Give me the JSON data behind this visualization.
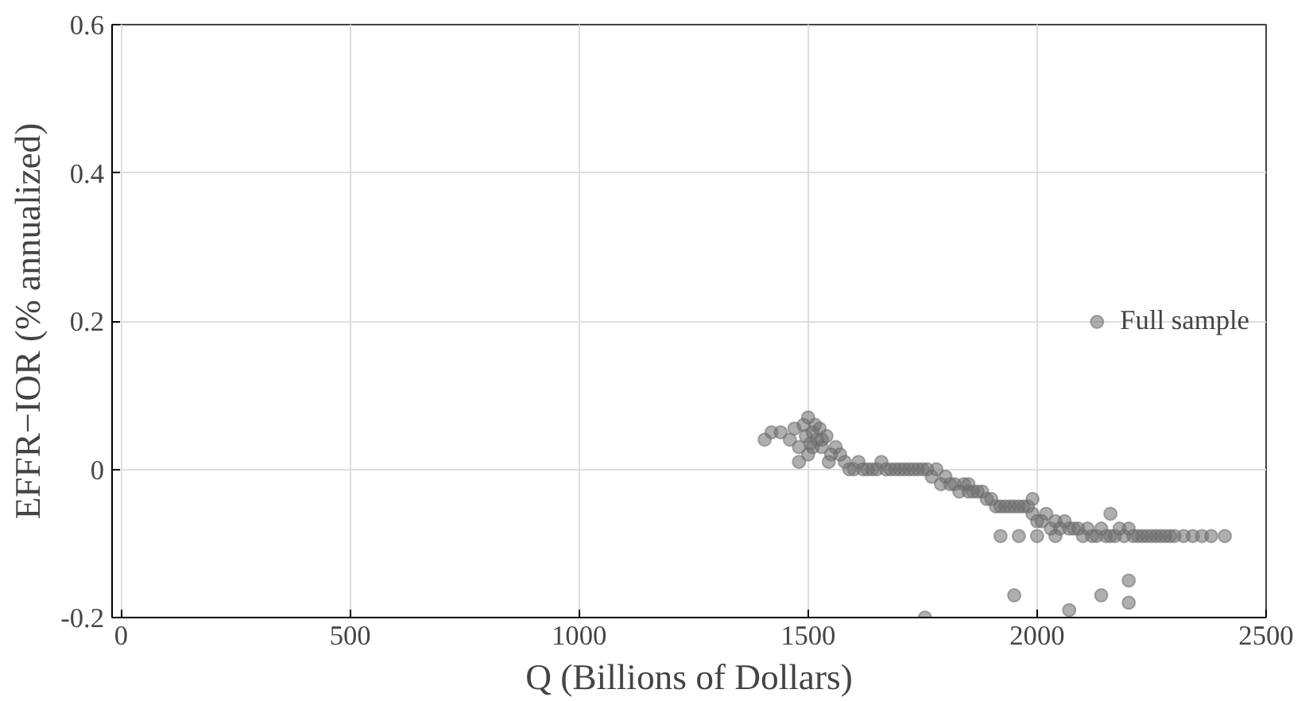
{
  "chart_data": {
    "type": "scatter",
    "xlabel": "Q (Billions of Dollars)",
    "ylabel": "EFFR−IOR (% annualized)",
    "xlim": [
      -20,
      2500
    ],
    "ylim": [
      -0.2,
      0.6
    ],
    "xticks": [
      0,
      500,
      1000,
      1500,
      2000,
      2500
    ],
    "yticks": [
      -0.2,
      0,
      0.2,
      0.4,
      0.6
    ],
    "grid": true,
    "legend": "right",
    "marker": "circle",
    "series": [
      {
        "name": "Full sample",
        "color": "#6e6e6e",
        "x": [
          1405,
          1420,
          1440,
          1460,
          1470,
          1480,
          1490,
          1495,
          1500,
          1505,
          1510,
          1515,
          1520,
          1525,
          1530,
          1540,
          1550,
          1560,
          1570,
          1580,
          1590,
          1600,
          1610,
          1620,
          1630,
          1640,
          1650,
          1660,
          1670,
          1680,
          1690,
          1700,
          1710,
          1720,
          1730,
          1740,
          1750,
          1760,
          1770,
          1780,
          1790,
          1800,
          1810,
          1820,
          1830,
          1840,
          1850,
          1860,
          1870,
          1880,
          1890,
          1900,
          1910,
          1920,
          1930,
          1940,
          1950,
          1960,
          1970,
          1980,
          1990,
          2000,
          2010,
          2020,
          2030,
          2040,
          2050,
          2060,
          2070,
          2080,
          2090,
          2100,
          2110,
          2120,
          2130,
          2140,
          2150,
          2160,
          2170,
          2180,
          2190,
          2200,
          2210,
          2220,
          2230,
          2240,
          2250,
          2260,
          2270,
          2280,
          2290,
          2300,
          2320,
          2340,
          2360,
          2380,
          2410,
          1920,
          1960,
          2000,
          2040,
          1755,
          1950,
          2070,
          2140,
          2200,
          2200,
          1480,
          1500,
          1510,
          1530,
          1545,
          1850,
          1990,
          2160
        ],
        "values": [
          0.04,
          0.05,
          0.05,
          0.04,
          0.055,
          0.03,
          0.06,
          0.045,
          0.07,
          0.035,
          0.05,
          0.06,
          0.04,
          0.055,
          0.03,
          0.045,
          0.02,
          0.03,
          0.02,
          0.01,
          0.0,
          0.0,
          0.01,
          0.0,
          0.0,
          0.0,
          0.0,
          0.01,
          0.0,
          0.0,
          0.0,
          0.0,
          0.0,
          0.0,
          0.0,
          0.0,
          0.0,
          0.0,
          -0.01,
          0.0,
          -0.02,
          -0.01,
          -0.02,
          -0.02,
          -0.03,
          -0.02,
          -0.03,
          -0.03,
          -0.03,
          -0.03,
          -0.04,
          -0.04,
          -0.05,
          -0.05,
          -0.05,
          -0.05,
          -0.05,
          -0.05,
          -0.05,
          -0.05,
          -0.06,
          -0.07,
          -0.07,
          -0.06,
          -0.08,
          -0.07,
          -0.08,
          -0.07,
          -0.08,
          -0.08,
          -0.08,
          -0.09,
          -0.08,
          -0.09,
          -0.09,
          -0.08,
          -0.09,
          -0.09,
          -0.09,
          -0.08,
          -0.09,
          -0.08,
          -0.09,
          -0.09,
          -0.09,
          -0.09,
          -0.09,
          -0.09,
          -0.09,
          -0.09,
          -0.09,
          -0.09,
          -0.09,
          -0.09,
          -0.09,
          -0.09,
          -0.09,
          -0.09,
          -0.09,
          -0.09,
          -0.09,
          -0.2,
          -0.17,
          -0.19,
          -0.17,
          -0.15,
          -0.18,
          0.01,
          0.02,
          0.03,
          0.04,
          0.01,
          -0.02,
          -0.04,
          -0.06
        ]
      }
    ]
  }
}
